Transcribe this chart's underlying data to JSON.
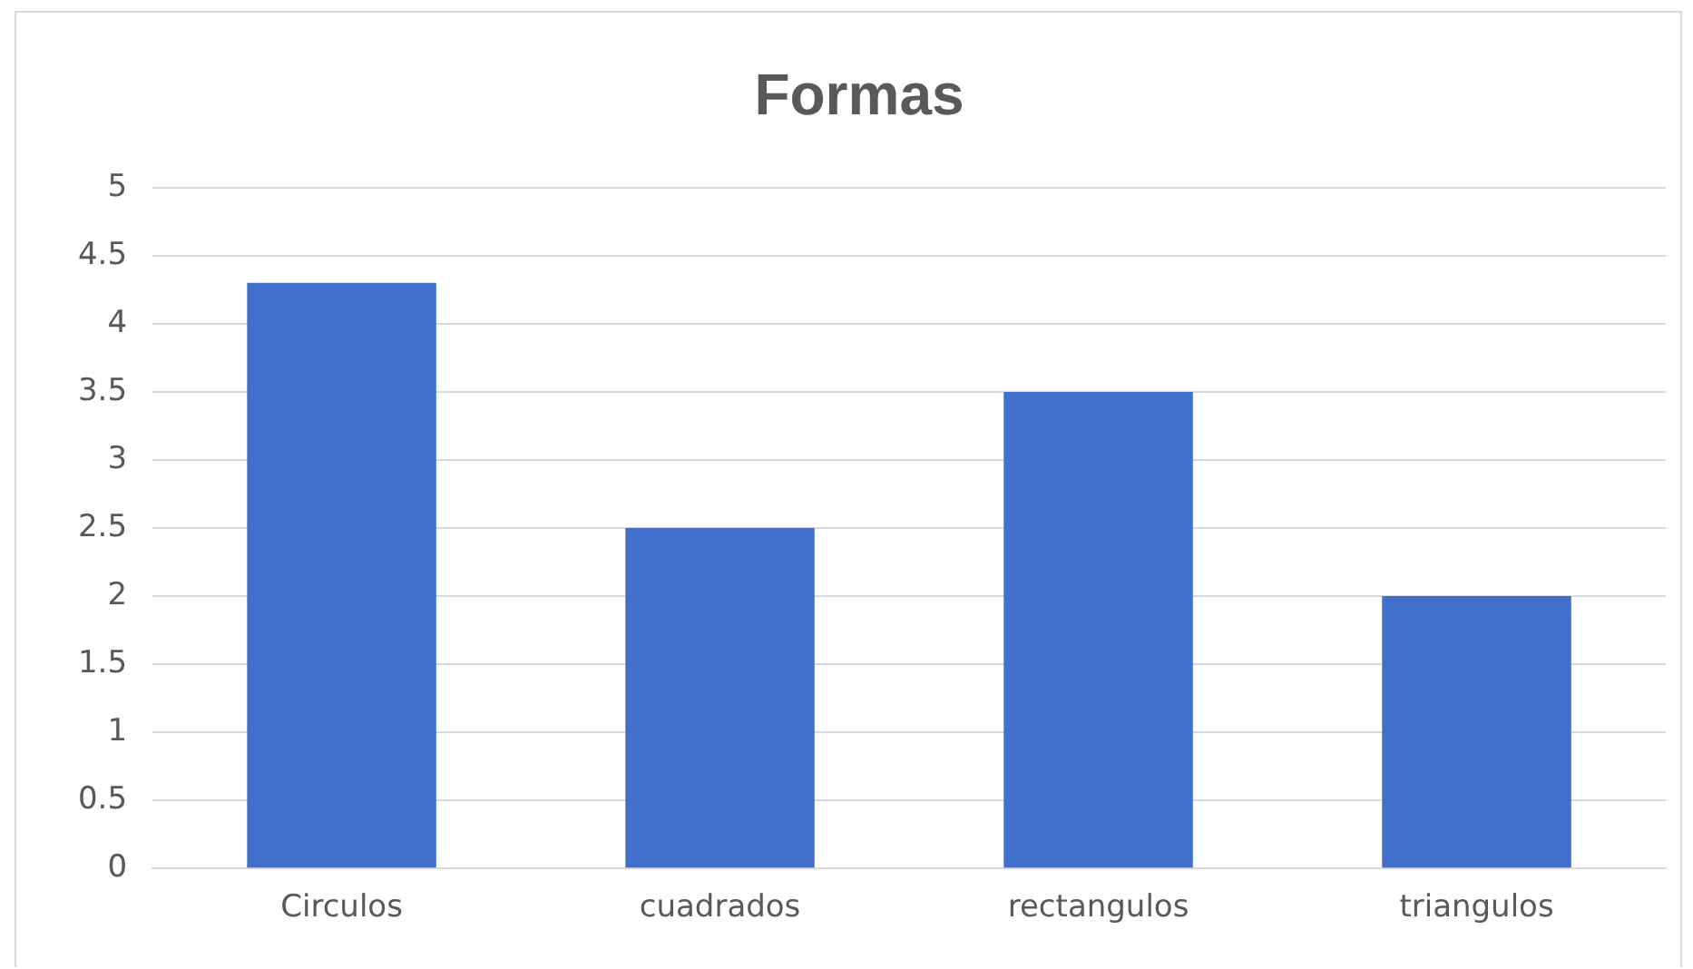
{
  "chart_data": {
    "type": "bar",
    "title": "Formas",
    "categories": [
      "Circulos",
      "cuadrados",
      "rectangulos",
      "triangulos"
    ],
    "values": [
      4.3,
      2.5,
      3.5,
      2
    ],
    "color": "#4070cc",
    "ylim": [
      0,
      5
    ],
    "yticks": [
      0,
      0.5,
      1,
      1.5,
      2,
      2.5,
      3,
      3.5,
      4,
      4.5,
      5
    ],
    "grid": "y",
    "legend": false
  }
}
